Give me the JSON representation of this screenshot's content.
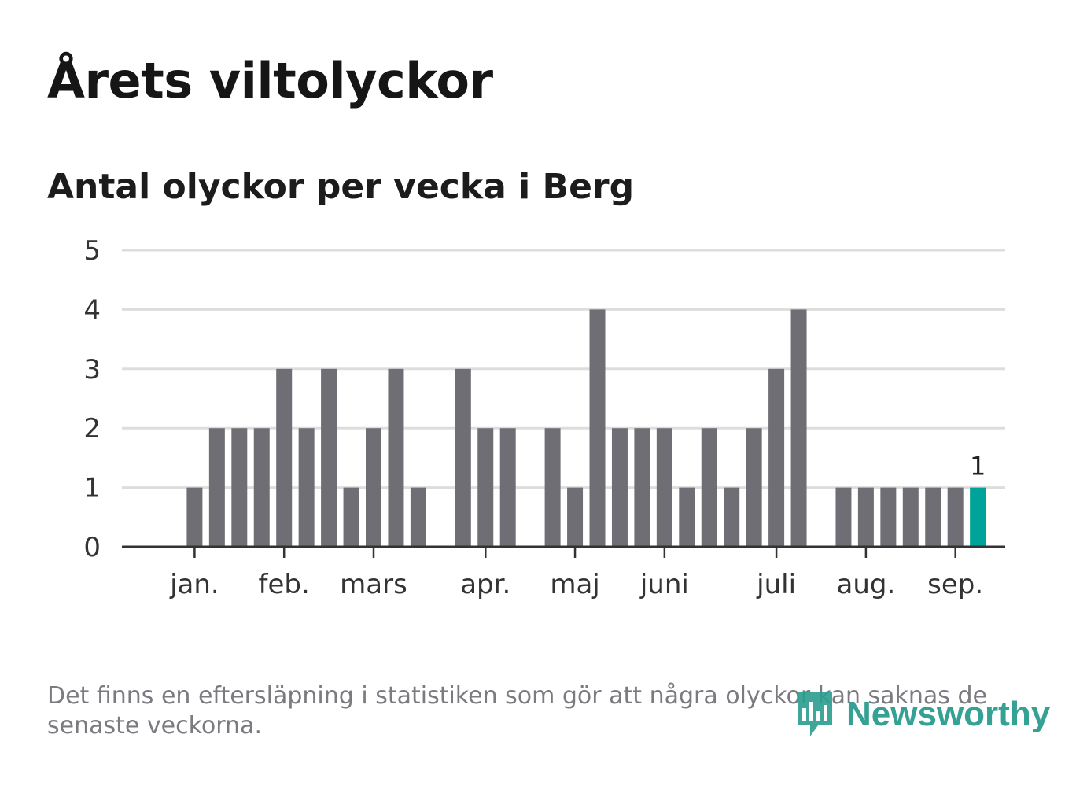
{
  "title": "Årets viltolyckor",
  "subtitle": "Antal olyckor per vecka i Berg",
  "footnote": "Det finns en eftersläpning i statistiken som gör att några olyckor kan saknas de senaste veckorna.",
  "brand": {
    "name": "Newsworthy",
    "icon": "newsworthy-logo-icon",
    "color": "#2a9d8f"
  },
  "colors": {
    "bar": "#6f6e74",
    "highlight": "#00a39a",
    "grid": "#dddddd",
    "axis": "#333333"
  },
  "chart_data": {
    "type": "bar",
    "title": "Årets viltolyckor",
    "subtitle": "Antal olyckor per vecka i Berg",
    "xlabel": "",
    "ylabel": "",
    "ylim": [
      0,
      5
    ],
    "yticks": [
      0,
      1,
      2,
      3,
      4,
      5
    ],
    "grid": true,
    "weeks": [
      1,
      2,
      3,
      4,
      5,
      6,
      7,
      8,
      9,
      10,
      11,
      12,
      13,
      14,
      15,
      16,
      17,
      18,
      19,
      20,
      21,
      22,
      23,
      24,
      25,
      26,
      27,
      28,
      29,
      30,
      31,
      32,
      33,
      34,
      35,
      36,
      37,
      38,
      39
    ],
    "values": [
      0,
      0,
      1,
      2,
      2,
      2,
      3,
      2,
      3,
      1,
      2,
      3,
      1,
      0,
      3,
      2,
      2,
      0,
      2,
      1,
      4,
      2,
      2,
      2,
      1,
      2,
      1,
      2,
      3,
      4,
      0,
      1,
      1,
      1,
      1,
      1,
      1,
      1,
      0
    ],
    "highlight": {
      "week": 38,
      "value": 1,
      "label": "1"
    },
    "month_ticks": [
      {
        "label": "jan.",
        "week": 3
      },
      {
        "label": "feb.",
        "week": 7
      },
      {
        "label": "mars",
        "week": 11
      },
      {
        "label": "apr.",
        "week": 16
      },
      {
        "label": "maj",
        "week": 20
      },
      {
        "label": "juni",
        "week": 24
      },
      {
        "label": "juli",
        "week": 29
      },
      {
        "label": "aug.",
        "week": 33
      },
      {
        "label": "sep.",
        "week": 37
      }
    ]
  }
}
